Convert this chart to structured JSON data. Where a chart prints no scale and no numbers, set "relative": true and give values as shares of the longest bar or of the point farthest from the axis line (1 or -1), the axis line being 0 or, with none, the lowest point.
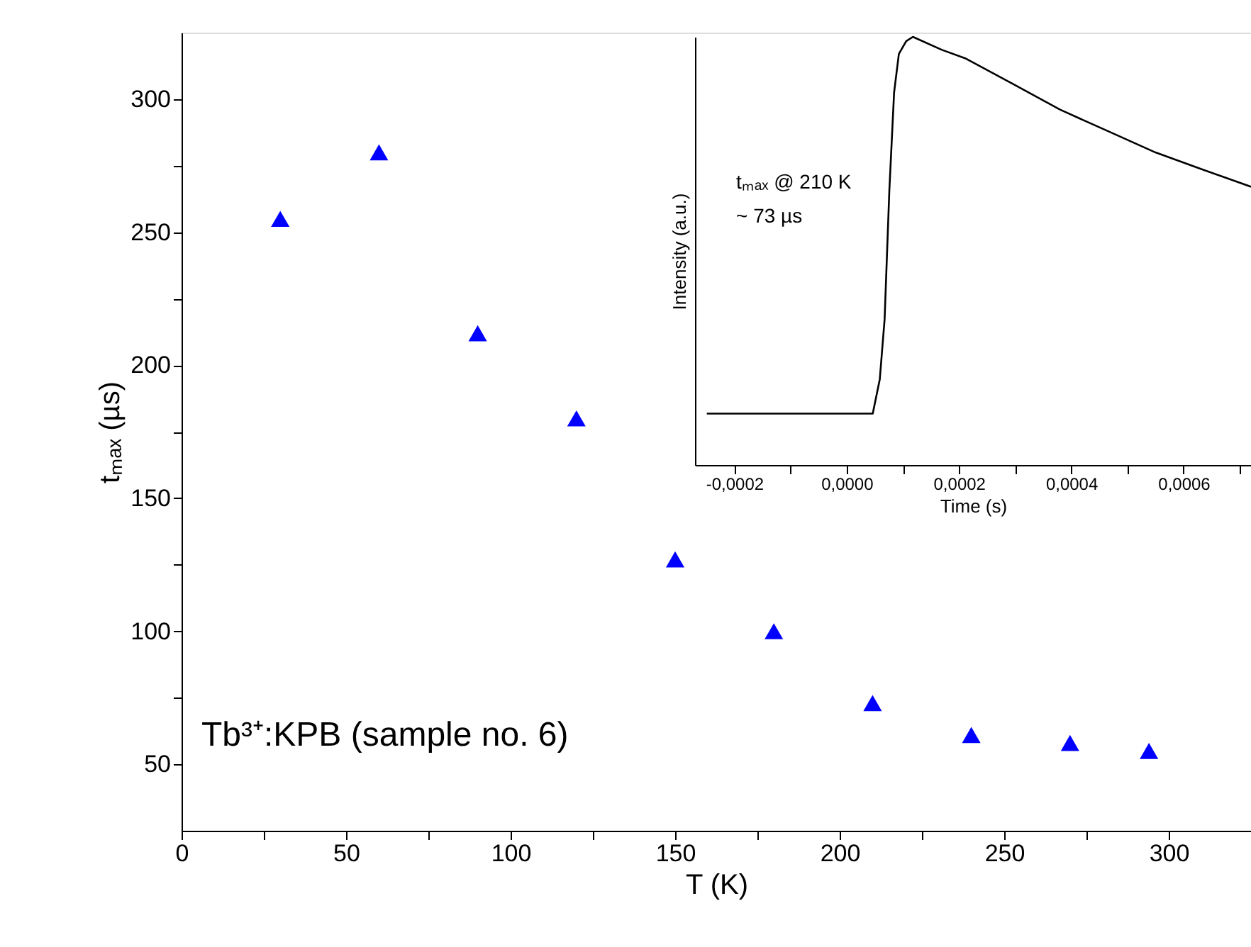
{
  "chart_data": [
    {
      "type": "scatter",
      "xlabel": "T (K)",
      "ylabel": "tₘₐₓ (µs)",
      "x": [
        30,
        60,
        90,
        120,
        150,
        180,
        210,
        240,
        270,
        294
      ],
      "series": [
        {
          "color": "#0000ff",
          "values": [
            255,
            280,
            212,
            180,
            127,
            100,
            73,
            61,
            58,
            55
          ]
        }
      ],
      "xlim": [
        0,
        325
      ],
      "ylim": [
        25,
        325
      ],
      "xticks": [
        0,
        {
          "value": 25,
          "label": null
        },
        50,
        {
          "value": 75,
          "label": null
        },
        100,
        {
          "value": 125,
          "label": null
        },
        150,
        {
          "value": 175,
          "label": null
        },
        200,
        {
          "value": 225,
          "label": null
        },
        250,
        {
          "value": 275,
          "label": null
        },
        300
      ],
      "yticks": [
        50,
        {
          "value": 75,
          "label": null
        },
        100,
        {
          "value": 125,
          "label": null
        },
        150,
        {
          "value": 175,
          "label": null
        },
        200,
        {
          "value": 225,
          "label": null
        },
        250,
        {
          "value": 275,
          "label": null
        },
        300
      ],
      "marker": "triangle",
      "grid": false,
      "annotations": [
        "Tb³⁺:KPB (sample no. 6)"
      ]
    },
    {
      "type": "line",
      "xlabel": "Time (s)",
      "ylabel": "Intensity (a.u.)",
      "relative": true,
      "x": [
        -0.000249,
        4.65e-05,
        5.9e-05,
        6.76e-05,
        7.6e-05,
        8.45e-05,
        9.3e-05,
        0.000106,
        0.000118,
        0.000169,
        0.000211,
        0.000296,
        0.00038,
        0.000465,
        0.00055,
        0.000634,
        0.00072
      ],
      "series": [
        {
          "color": "#000000",
          "values": [
            0.12,
            0.12,
            0.2,
            0.34,
            0.64,
            0.87,
            0.96,
            0.99,
            1.0,
            0.97,
            0.95,
            0.89,
            0.83,
            0.78,
            0.73,
            0.69,
            0.65
          ]
        }
      ],
      "xlim": [
        -0.00027,
        0.00072
      ],
      "xticks": [
        {
          "value": -0.0002,
          "label": "-0,0002"
        },
        {
          "value": -0.0001,
          "label": null
        },
        {
          "value": 0,
          "label": "0,0000"
        },
        {
          "value": 0.0001,
          "label": null
        },
        {
          "value": 0.0002,
          "label": "0,0002"
        },
        {
          "value": 0.0003,
          "label": null
        },
        {
          "value": 0.0004,
          "label": "0,0004"
        },
        {
          "value": 0.0005,
          "label": null
        },
        {
          "value": 0.0006,
          "label": "0,0006"
        },
        {
          "value": 0.0007,
          "label": null
        }
      ],
      "tick_labels": "x",
      "grid": false,
      "marker": "none",
      "line_style": "solid",
      "annotations": [
        "tₘₐₓ @ 210 K",
        "~ 73 µs"
      ]
    }
  ]
}
